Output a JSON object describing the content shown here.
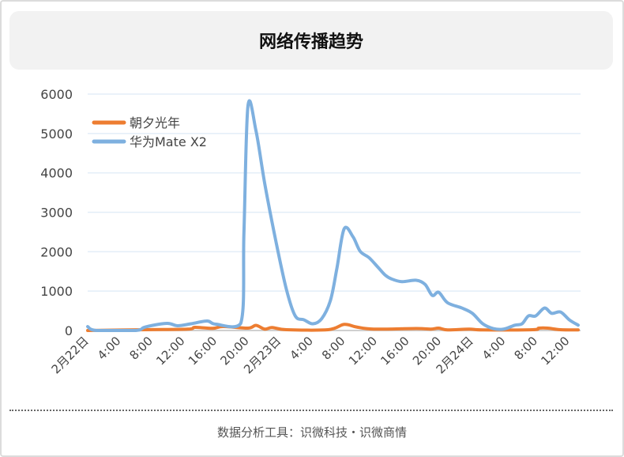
{
  "header": {
    "title": "网络传播趋势"
  },
  "footer": {
    "text": "数据分析工具：识微科技・识微商情"
  },
  "chart_data": {
    "type": "line",
    "title": "网络传播趋势",
    "xlabel": "",
    "ylabel": "",
    "x_unit": "hours since 2月22日 0:00",
    "xlim": [
      0,
      61.5
    ],
    "ylim": [
      0,
      6000
    ],
    "yticks": [
      "0",
      "1000",
      "2000",
      "3000",
      "4000",
      "5000",
      "6000"
    ],
    "ytick_values": [
      0,
      1000,
      2000,
      3000,
      4000,
      5000,
      6000
    ],
    "xticks": [
      "2月22日",
      "4:00",
      "8:00",
      "12:00",
      "16:00",
      "20:00",
      "2月23日",
      "4:00",
      "8:00",
      "12:00",
      "16:00",
      "20:00",
      "2月24日",
      "4:00",
      "8:00",
      "12:00"
    ],
    "xtick_values": [
      0,
      4,
      8,
      12,
      16,
      20,
      24,
      28,
      32,
      36,
      40,
      44,
      48,
      52,
      56,
      60
    ],
    "grid": true,
    "legend_position": "top-left",
    "series": [
      {
        "name": "朝夕光年",
        "color": "#ed7d31",
        "x": [
          0,
          7.2,
          12.5,
          13.4,
          15.6,
          16.9,
          20,
          21,
          22.1,
          23,
          24.8,
          30,
          32,
          33.5,
          35.7,
          41,
          42.8,
          43.8,
          44.9,
          47.6,
          49.3,
          55.5,
          56.3,
          57.4,
          59,
          61.2
        ],
        "y": [
          0,
          20,
          35,
          80,
          55,
          100,
          60,
          130,
          35,
          75,
          20,
          20,
          155,
          90,
          35,
          50,
          35,
          60,
          15,
          35,
          15,
          20,
          60,
          60,
          20,
          15
        ]
      },
      {
        "name": "华为Mate X2",
        "color": "#7eb0df",
        "x": [
          0,
          1.1,
          6,
          7.2,
          9.9,
          11.2,
          12.9,
          14.9,
          16,
          19.1,
          19.5,
          20,
          21,
          22.1,
          23.5,
          24.8,
          25.9,
          27,
          28.1,
          29.2,
          30.3,
          31.1,
          32,
          33.1,
          34,
          35.1,
          36.2,
          37.1,
          37.9,
          39.2,
          41,
          42.1,
          43,
          43.8,
          44.9,
          46.7,
          48,
          49.3,
          50.6,
          51.9,
          53.3,
          54.2,
          55,
          55.9,
          57,
          57.9,
          59,
          60.1,
          61.2
        ],
        "y": [
          100,
          0,
          0,
          90,
          180,
          120,
          170,
          240,
          160,
          180,
          2500,
          5700,
          5070,
          3720,
          2250,
          1040,
          370,
          270,
          170,
          300,
          770,
          1580,
          2580,
          2380,
          2010,
          1850,
          1610,
          1410,
          1310,
          1240,
          1275,
          1170,
          890,
          970,
          705,
          570,
          436,
          170,
          50,
          35,
          135,
          170,
          370,
          370,
          570,
          436,
          470,
          270,
          135
        ]
      }
    ]
  }
}
